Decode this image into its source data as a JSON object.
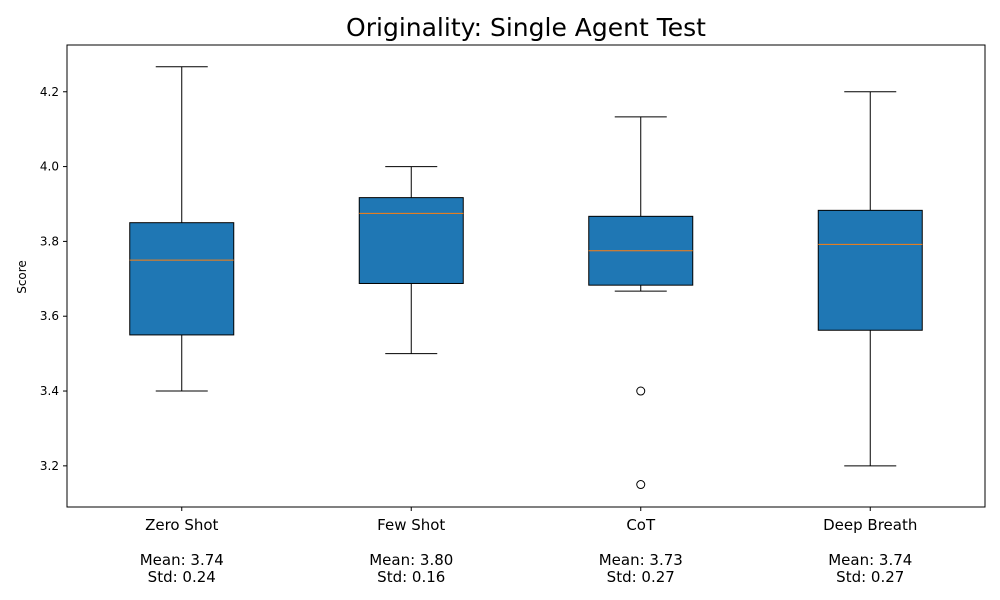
{
  "chart_data": {
    "type": "box",
    "title": "Originality: Single Agent Test",
    "xlabel": "",
    "ylabel": "Score",
    "ylim": [
      3.09,
      4.325
    ],
    "yticks": [
      "3.2",
      "3.4",
      "3.6",
      "3.8",
      "4.0",
      "4.2"
    ],
    "grid": false,
    "colors": {
      "box_fill": "#1f77b4",
      "median": "#ff7f0e",
      "edge": "#000000"
    },
    "boxes": [
      {
        "label": "Zero Shot",
        "mean_text": "Mean: 3.74",
        "std_text": "Std: 0.24",
        "whisker_low": 3.4,
        "q1": 3.55,
        "median": 3.75,
        "q3": 3.85,
        "whisker_high": 4.267,
        "outliers": []
      },
      {
        "label": "Few Shot",
        "mean_text": "Mean: 3.80",
        "std_text": "Std: 0.16",
        "whisker_low": 3.5,
        "q1": 3.6875,
        "median": 3.875,
        "q3": 3.917,
        "whisker_high": 4.0,
        "outliers": []
      },
      {
        "label": "CoT",
        "mean_text": "Mean: 3.73",
        "std_text": "Std: 0.27",
        "whisker_low": 3.667,
        "q1": 3.683,
        "median": 3.775,
        "q3": 3.867,
        "whisker_high": 4.133,
        "outliers": [
          3.4,
          3.15
        ]
      },
      {
        "label": "Deep Breath",
        "mean_text": "Mean: 3.74",
        "std_text": "Std: 0.27",
        "whisker_low": 3.2,
        "q1": 3.5625,
        "median": 3.792,
        "q3": 3.883,
        "whisker_high": 4.2,
        "outliers": []
      }
    ]
  }
}
